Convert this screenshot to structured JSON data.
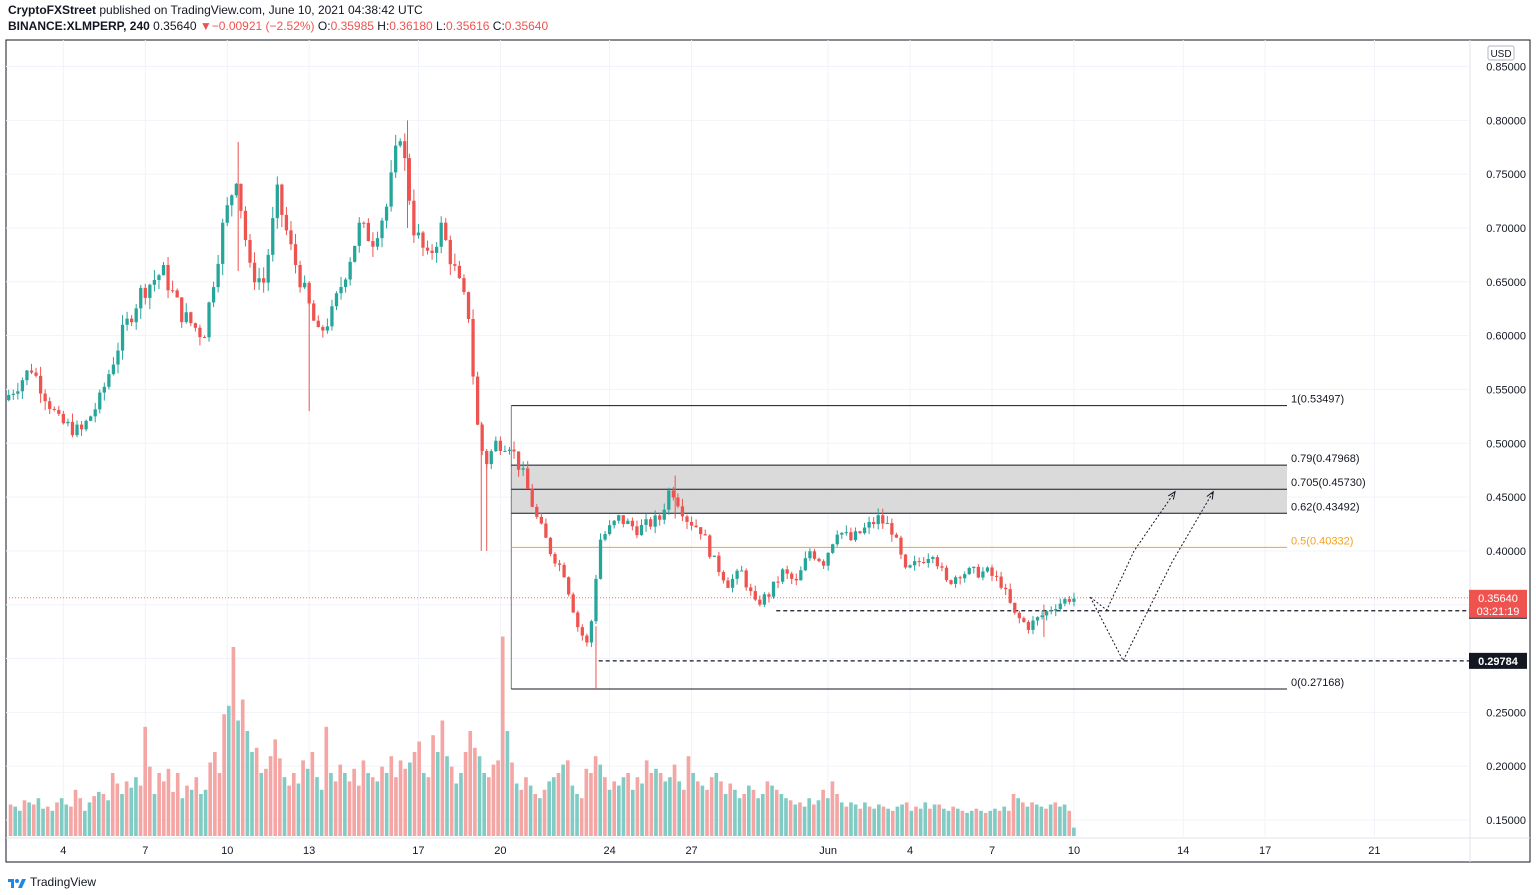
{
  "header": {
    "publisher": "CryptoFXStreet",
    "published_text": "published on TradingView.com, June 10, 2021 04:38:42 UTC",
    "symbol": "BINANCE:XLMPERP, 240",
    "last": "0.35640",
    "change": "−0.00921 (−2.52%)",
    "o_label": "O:",
    "o": "0.35985",
    "h_label": "H:",
    "h": "0.36180",
    "l_label": "L:",
    "l": "0.35616",
    "c_label": "C:",
    "c": "0.35640"
  },
  "footer": {
    "brand": "TradingView"
  },
  "colors": {
    "up": "#26a69a",
    "down": "#ef5350",
    "fib_mid": "#f7a21b",
    "zone": "#d4d4d4",
    "grid": "#f0f3fa"
  },
  "chart_data": {
    "type": "candlestick",
    "currency_label": "USD",
    "ylim": [
      0.13,
      0.86
    ],
    "y_ticks": [
      "0.85000",
      "0.80000",
      "0.75000",
      "0.70000",
      "0.65000",
      "0.60000",
      "0.55000",
      "0.50000",
      "0.45000",
      "0.40000",
      "0.35000",
      "0.30000",
      "0.25000",
      "0.20000",
      "0.15000"
    ],
    "x_ticks": [
      {
        "label": "4",
        "day": 4
      },
      {
        "label": "7",
        "day": 7
      },
      {
        "label": "10",
        "day": 10
      },
      {
        "label": "13",
        "day": 13
      },
      {
        "label": "17",
        "day": 17
      },
      {
        "label": "20",
        "day": 20
      },
      {
        "label": "24",
        "day": 24
      },
      {
        "label": "27",
        "day": 27
      },
      {
        "label": "Jun",
        "day": 32
      },
      {
        "label": "4",
        "day": 35
      },
      {
        "label": "7",
        "day": 38
      },
      {
        "label": "10",
        "day": 41
      },
      {
        "label": "14",
        "day": 45
      },
      {
        "label": "17",
        "day": 48
      },
      {
        "label": "21",
        "day": 52
      }
    ],
    "price_path": [
      [
        2.0,
        0.54
      ],
      [
        3.0,
        0.57
      ],
      [
        4.0,
        0.52
      ],
      [
        4.8,
        0.51
      ],
      [
        5.5,
        0.54
      ],
      [
        6.3,
        0.6
      ],
      [
        7.0,
        0.64
      ],
      [
        7.8,
        0.66
      ],
      [
        8.5,
        0.62
      ],
      [
        9.3,
        0.6
      ],
      [
        10.0,
        0.7
      ],
      [
        10.5,
        0.75
      ],
      [
        11.0,
        0.66
      ],
      [
        11.5,
        0.65
      ],
      [
        12.0,
        0.73
      ],
      [
        12.5,
        0.68
      ],
      [
        13.0,
        0.64
      ],
      [
        13.5,
        0.6
      ],
      [
        14.0,
        0.62
      ],
      [
        14.5,
        0.66
      ],
      [
        15.0,
        0.7
      ],
      [
        15.5,
        0.69
      ],
      [
        16.0,
        0.72
      ],
      [
        16.5,
        0.79
      ],
      [
        17.0,
        0.7
      ],
      [
        17.5,
        0.67
      ],
      [
        18.0,
        0.7
      ],
      [
        18.5,
        0.66
      ],
      [
        19.0,
        0.62
      ],
      [
        19.3,
        0.52
      ],
      [
        19.6,
        0.48
      ],
      [
        20.0,
        0.5
      ],
      [
        20.5,
        0.5
      ],
      [
        21.0,
        0.47
      ],
      [
        21.5,
        0.43
      ],
      [
        22.0,
        0.4
      ],
      [
        22.5,
        0.38
      ],
      [
        23.0,
        0.33
      ],
      [
        23.4,
        0.31
      ],
      [
        23.8,
        0.41
      ],
      [
        24.5,
        0.43
      ],
      [
        25.2,
        0.42
      ],
      [
        26.0,
        0.43
      ],
      [
        26.4,
        0.46
      ],
      [
        27.0,
        0.43
      ],
      [
        27.5,
        0.42
      ],
      [
        28.0,
        0.39
      ],
      [
        28.5,
        0.37
      ],
      [
        29.0,
        0.38
      ],
      [
        29.5,
        0.35
      ],
      [
        30.0,
        0.36
      ],
      [
        30.5,
        0.38
      ],
      [
        31.0,
        0.37
      ],
      [
        31.5,
        0.4
      ],
      [
        32.0,
        0.39
      ],
      [
        32.5,
        0.42
      ],
      [
        33.0,
        0.41
      ],
      [
        33.5,
        0.42
      ],
      [
        34.0,
        0.43
      ],
      [
        34.5,
        0.42
      ],
      [
        35.0,
        0.38
      ],
      [
        35.5,
        0.39
      ],
      [
        36.0,
        0.4
      ],
      [
        36.5,
        0.37
      ],
      [
        37.0,
        0.38
      ],
      [
        37.5,
        0.38
      ],
      [
        38.0,
        0.38
      ],
      [
        38.5,
        0.37
      ],
      [
        39.0,
        0.34
      ],
      [
        39.5,
        0.33
      ],
      [
        40.0,
        0.34
      ],
      [
        40.5,
        0.35
      ],
      [
        41.0,
        0.356
      ]
    ],
    "wicks": [
      {
        "day": 10.4,
        "high": 0.78,
        "low": 0.66
      },
      {
        "day": 16.6,
        "high": 0.8,
        "low": 0.7
      },
      {
        "day": 19.5,
        "high": 0.49,
        "low": 0.4
      },
      {
        "day": 19.3,
        "high": 0.52,
        "low": 0.4
      },
      {
        "day": 23.5,
        "high": 0.33,
        "low": 0.2717
      },
      {
        "day": 26.4,
        "high": 0.47,
        "low": 0.43
      },
      {
        "day": 39.9,
        "high": 0.35,
        "low": 0.32
      },
      {
        "day": 13.0,
        "high": 0.64,
        "low": 0.53
      }
    ],
    "fib_levels": [
      {
        "label": "1(0.53497)",
        "value": 0.53497,
        "color": "#131722"
      },
      {
        "label": "0.79(0.47968)",
        "value": 0.47968,
        "color": "#131722"
      },
      {
        "label": "0.705(0.45730)",
        "value": 0.4573,
        "color": "#131722"
      },
      {
        "label": "0.62(0.43492)",
        "value": 0.43492,
        "color": "#131722"
      },
      {
        "label": "0.5(0.40332)",
        "value": 0.40332,
        "color": "#f7a21b"
      },
      {
        "label": "0(0.27168)",
        "value": 0.27168,
        "color": "#131722"
      }
    ],
    "fib_start_day": 20.4,
    "fib_end_day": 48.8,
    "zone": {
      "top": 0.47968,
      "bottom": 0.43492
    },
    "support_levels": [
      {
        "value": 0.3444,
        "label": "0.34440",
        "start_day": 30.1
      },
      {
        "value": 0.29784,
        "label": "0.29784",
        "start_day": 23.6
      }
    ],
    "current_price": {
      "value": 0.3564,
      "label": "0.35640",
      "countdown": "03:21:19"
    },
    "projection_paths": [
      [
        [
          41.6,
          0.357
        ],
        [
          42.2,
          0.345
        ],
        [
          43.2,
          0.4
        ],
        [
          44.7,
          0.455
        ]
      ],
      [
        [
          41.6,
          0.357
        ],
        [
          42.8,
          0.298
        ],
        [
          44.6,
          0.39
        ],
        [
          46.1,
          0.455
        ]
      ]
    ],
    "volume": {
      "max_value": 1.0,
      "seed_note": ""
    },
    "volume_values": [
      0.15,
      0.14,
      0.12,
      0.17,
      0.16,
      0.15,
      0.18,
      0.13,
      0.14,
      0.12,
      0.16,
      0.18,
      0.15,
      0.14,
      0.22,
      0.18,
      0.12,
      0.16,
      0.19,
      0.21,
      0.2,
      0.17,
      0.3,
      0.25,
      0.2,
      0.26,
      0.23,
      0.28,
      0.24,
      0.52,
      0.33,
      0.2,
      0.3,
      0.26,
      0.32,
      0.21,
      0.3,
      0.18,
      0.24,
      0.22,
      0.28,
      0.2,
      0.22,
      0.35,
      0.4,
      0.3,
      0.58,
      0.62,
      0.9,
      0.55,
      0.65,
      0.5,
      0.4,
      0.42,
      0.3,
      0.32,
      0.38,
      0.46,
      0.37,
      0.28,
      0.24,
      0.3,
      0.25,
      0.36,
      0.32,
      0.4,
      0.28,
      0.22,
      0.52,
      0.3,
      0.26,
      0.34,
      0.3,
      0.26,
      0.32,
      0.24,
      0.36,
      0.3,
      0.28,
      0.26,
      0.33,
      0.3,
      0.38,
      0.28,
      0.36,
      0.32,
      0.35,
      0.4,
      0.45,
      0.3,
      0.28,
      0.48,
      0.4,
      0.55,
      0.38,
      0.33,
      0.25,
      0.3,
      0.4,
      0.5,
      0.42,
      0.38,
      0.3,
      0.28,
      0.34,
      0.36,
      0.95,
      0.5,
      0.35,
      0.25,
      0.22,
      0.28,
      0.24,
      0.2,
      0.18,
      0.22,
      0.26,
      0.28,
      0.3,
      0.34,
      0.36,
      0.24,
      0.2,
      0.18,
      0.32,
      0.3,
      0.38,
      0.34,
      0.28,
      0.22,
      0.26,
      0.24,
      0.28,
      0.3,
      0.22,
      0.28,
      0.25,
      0.36,
      0.3,
      0.32,
      0.3,
      0.26,
      0.28,
      0.34,
      0.26,
      0.22,
      0.38,
      0.3,
      0.26,
      0.24,
      0.22,
      0.28,
      0.3,
      0.26,
      0.2,
      0.25,
      0.22,
      0.18,
      0.2,
      0.24,
      0.22,
      0.18,
      0.2,
      0.26,
      0.24,
      0.22,
      0.2,
      0.18,
      0.17,
      0.15,
      0.16,
      0.14,
      0.18,
      0.15,
      0.17,
      0.22,
      0.18,
      0.26,
      0.2,
      0.16,
      0.14,
      0.16,
      0.15,
      0.13,
      0.16,
      0.14,
      0.13,
      0.15,
      0.14,
      0.13,
      0.12,
      0.14,
      0.15,
      0.16,
      0.12,
      0.14,
      0.13,
      0.16,
      0.13,
      0.15,
      0.15,
      0.13,
      0.12,
      0.14,
      0.13,
      0.12,
      0.11,
      0.12,
      0.13,
      0.12,
      0.11,
      0.12,
      0.13,
      0.12,
      0.14,
      0.12,
      0.2,
      0.18,
      0.16,
      0.14,
      0.16,
      0.15,
      0.14,
      0.13,
      0.15,
      0.16,
      0.14,
      0.15,
      0.12,
      0.04
    ]
  }
}
